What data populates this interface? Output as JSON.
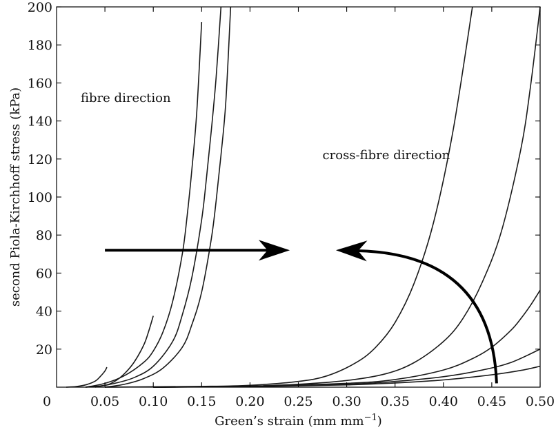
{
  "chart_data": {
    "type": "line",
    "xlabel": "Green’s strain (mm mm",
    "xlabel_sup": "−1",
    "xlabel_end": ")",
    "ylabel": "second Piola-Kirchhoff stress (kPa)",
    "xlim": [
      0,
      0.5
    ],
    "ylim": [
      0,
      200
    ],
    "x_ticks": [
      0.05,
      0.1,
      0.15,
      0.2,
      0.25,
      0.3,
      0.35,
      0.4,
      0.45,
      0.5
    ],
    "x_tick_labels": [
      "0.05",
      "0.10",
      "0.15",
      "0.20",
      "0.25",
      "0.30",
      "0.35",
      "0.40",
      "0.45",
      "0.50"
    ],
    "y_ticks": [
      20,
      40,
      60,
      80,
      100,
      120,
      140,
      160,
      180,
      200
    ],
    "y_tick_labels": [
      "20",
      "40",
      "60",
      "80",
      "100",
      "120",
      "140",
      "160",
      "180",
      "200"
    ],
    "origin_label": "0",
    "grid": false,
    "annotations": [
      {
        "text": "fibre direction",
        "x": 0.025,
        "y": 150
      },
      {
        "text": "cross-fibre direction",
        "x": 0.275,
        "y": 120
      }
    ],
    "series": [
      {
        "group": "fibre",
        "x": [
          0.01,
          0.02,
          0.03,
          0.04,
          0.045,
          0.05,
          0.052
        ],
        "y": [
          0,
          0.3,
          1.2,
          3.2,
          5.5,
          8.5,
          10.5
        ]
      },
      {
        "group": "fibre",
        "x": [
          0.03,
          0.05,
          0.06,
          0.07,
          0.08,
          0.09,
          0.095,
          0.1
        ],
        "y": [
          0,
          1,
          3,
          7,
          13,
          22,
          29,
          37.5
        ]
      },
      {
        "group": "fibre",
        "x": [
          0.03,
          0.05,
          0.07,
          0.09,
          0.1,
          0.11,
          0.12,
          0.13,
          0.135,
          0.14,
          0.145,
          0.15
        ],
        "y": [
          0,
          2,
          6,
          13,
          19,
          29,
          45,
          70,
          90,
          115,
          145,
          192
        ]
      },
      {
        "group": "fibre",
        "x": [
          0.04,
          0.06,
          0.08,
          0.1,
          0.12,
          0.13,
          0.14,
          0.15,
          0.155,
          0.16,
          0.165,
          0.17
        ],
        "y": [
          0,
          2,
          5,
          11,
          24,
          38,
          58,
          88,
          110,
          135,
          163,
          200
        ]
      },
      {
        "group": "fibre",
        "x": [
          0.05,
          0.07,
          0.09,
          0.11,
          0.13,
          0.14,
          0.15,
          0.16,
          0.165,
          0.17,
          0.175,
          0.18
        ],
        "y": [
          0,
          1.5,
          4.5,
          10,
          21,
          33,
          50,
          78,
          98,
          122,
          150,
          200
        ]
      },
      {
        "group": "cross-fibre",
        "x": [
          0.05,
          0.15,
          0.2,
          0.25,
          0.28,
          0.31,
          0.33,
          0.35,
          0.37,
          0.39,
          0.41,
          0.43
        ],
        "y": [
          0,
          0.4,
          1,
          3,
          6,
          13,
          21,
          34,
          55,
          87,
          135,
          200
        ]
      },
      {
        "group": "cross-fibre",
        "x": [
          0.1,
          0.2,
          0.25,
          0.3,
          0.34,
          0.37,
          0.4,
          0.42,
          0.44,
          0.46,
          0.48,
          0.49,
          0.5
        ],
        "y": [
          0,
          0.6,
          1.5,
          3.5,
          7,
          13,
          24,
          36,
          55,
          82,
          125,
          158,
          200
        ]
      },
      {
        "group": "cross-fibre",
        "x": [
          0.1,
          0.2,
          0.3,
          0.35,
          0.4,
          0.43,
          0.45,
          0.47,
          0.48,
          0.49,
          0.5
        ],
        "y": [
          0,
          0.5,
          2,
          4,
          9,
          15,
          21,
          30,
          36,
          43,
          51
        ]
      },
      {
        "group": "cross-fibre",
        "x": [
          0.1,
          0.2,
          0.3,
          0.35,
          0.4,
          0.44,
          0.47,
          0.5
        ],
        "y": [
          0,
          0.4,
          1.5,
          3,
          5.5,
          9,
          13,
          20
        ]
      },
      {
        "group": "cross-fibre",
        "x": [
          0.1,
          0.2,
          0.3,
          0.35,
          0.4,
          0.45,
          0.48,
          0.5
        ],
        "y": [
          0,
          0.3,
          1.2,
          2.2,
          3.8,
          6.5,
          8.8,
          11
        ]
      }
    ],
    "arrows": [
      {
        "name": "straight-arrow",
        "from": [
          0.05,
          72
        ],
        "to": [
          0.24,
          72
        ]
      },
      {
        "name": "curved-arrow",
        "from": [
          0.455,
          2
        ],
        "control": [
          0.45,
          70
        ],
        "to": [
          0.29,
          72
        ]
      }
    ]
  }
}
